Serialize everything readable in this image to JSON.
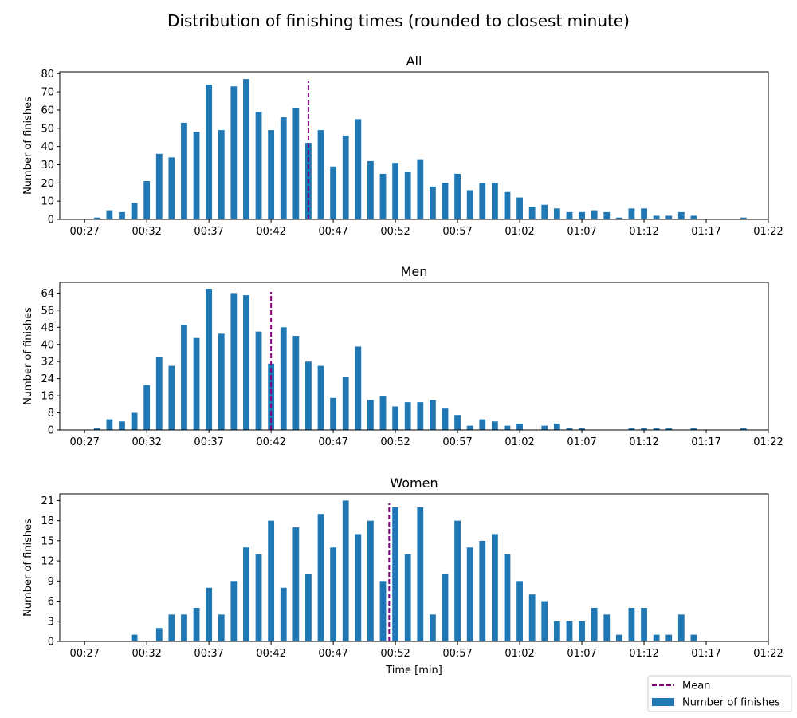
{
  "figure": {
    "title": "Distribution of finishing times (rounded to closest minute)"
  },
  "legend": {
    "placement": "lower-right",
    "items": [
      {
        "label": "Mean",
        "kind": "dashed-line",
        "color": "#800080"
      },
      {
        "label": "Number of finishes",
        "kind": "patch",
        "color": "#1f77b4"
      }
    ]
  },
  "colors": {
    "bar": "#1f77b4",
    "mean": "#800080"
  },
  "chart_data": [
    {
      "type": "bar",
      "title": "All",
      "xlabel": "",
      "ylabel": "Number of finishes",
      "x_unit": "minutes",
      "xlim": [
        25,
        82
      ],
      "ylim": [
        0,
        81
      ],
      "yticks": [
        0,
        10,
        20,
        30,
        40,
        50,
        60,
        70,
        80
      ],
      "xticks": [
        27,
        32,
        37,
        42,
        47,
        52,
        57,
        62,
        67,
        72,
        77,
        82
      ],
      "xtick_labels": [
        "00:27",
        "00:32",
        "00:37",
        "00:42",
        "00:47",
        "00:52",
        "00:57",
        "01:02",
        "01:07",
        "01:12",
        "01:17",
        "01:22"
      ],
      "mean": 45,
      "x": [
        28,
        29,
        30,
        31,
        32,
        33,
        34,
        35,
        36,
        37,
        38,
        39,
        40,
        41,
        42,
        43,
        44,
        45,
        46,
        47,
        48,
        49,
        50,
        51,
        52,
        53,
        54,
        55,
        56,
        57,
        58,
        59,
        60,
        61,
        62,
        63,
        64,
        65,
        66,
        67,
        68,
        69,
        70,
        71,
        72,
        73,
        74,
        75,
        76,
        80
      ],
      "values": [
        1,
        5,
        4,
        9,
        21,
        36,
        34,
        53,
        48,
        74,
        49,
        73,
        77,
        59,
        49,
        56,
        61,
        42,
        49,
        29,
        46,
        55,
        32,
        25,
        31,
        26,
        33,
        18,
        20,
        25,
        16,
        20,
        20,
        15,
        12,
        7,
        8,
        6,
        4,
        4,
        5,
        4,
        1,
        6,
        6,
        2,
        2,
        4,
        2,
        1
      ]
    },
    {
      "type": "bar",
      "title": "Men",
      "xlabel": "",
      "ylabel": "Number of finishes",
      "x_unit": "minutes",
      "xlim": [
        25,
        82
      ],
      "ylim": [
        0,
        69
      ],
      "yticks": [
        0,
        8,
        16,
        24,
        32,
        40,
        48,
        56,
        64
      ],
      "xticks": [
        27,
        32,
        37,
        42,
        47,
        52,
        57,
        62,
        67,
        72,
        77,
        82
      ],
      "xtick_labels": [
        "00:27",
        "00:32",
        "00:37",
        "00:42",
        "00:47",
        "00:52",
        "00:57",
        "01:02",
        "01:07",
        "01:12",
        "01:17",
        "01:22"
      ],
      "mean": 42,
      "x": [
        28,
        29,
        30,
        31,
        32,
        33,
        34,
        35,
        36,
        37,
        38,
        39,
        40,
        41,
        42,
        43,
        44,
        45,
        46,
        47,
        48,
        49,
        50,
        51,
        52,
        53,
        54,
        55,
        56,
        57,
        58,
        59,
        60,
        61,
        62,
        64,
        65,
        66,
        67,
        71,
        72,
        73,
        74,
        76,
        80
      ],
      "values": [
        1,
        5,
        4,
        8,
        21,
        34,
        30,
        49,
        43,
        66,
        45,
        64,
        63,
        46,
        31,
        48,
        44,
        32,
        30,
        15,
        25,
        39,
        14,
        16,
        11,
        13,
        13,
        14,
        10,
        7,
        2,
        5,
        4,
        2,
        3,
        2,
        3,
        1,
        1,
        1,
        1,
        1,
        1,
        1,
        1
      ]
    },
    {
      "type": "bar",
      "title": "Women",
      "xlabel": "Time [min]",
      "ylabel": "Number of finishes",
      "x_unit": "minutes",
      "xlim": [
        25,
        82
      ],
      "ylim": [
        0,
        22
      ],
      "yticks": [
        0,
        3,
        6,
        9,
        12,
        15,
        18,
        21
      ],
      "xticks": [
        27,
        32,
        37,
        42,
        47,
        52,
        57,
        62,
        67,
        72,
        77,
        82
      ],
      "xtick_labels": [
        "00:27",
        "00:32",
        "00:37",
        "00:42",
        "00:47",
        "00:52",
        "00:57",
        "01:02",
        "01:07",
        "01:12",
        "01:17",
        "01:22"
      ],
      "mean": 51.5,
      "x": [
        31,
        33,
        34,
        35,
        36,
        37,
        38,
        39,
        40,
        41,
        42,
        43,
        44,
        45,
        46,
        47,
        48,
        49,
        50,
        51,
        52,
        53,
        54,
        55,
        56,
        57,
        58,
        59,
        60,
        61,
        62,
        63,
        64,
        65,
        66,
        67,
        68,
        69,
        70,
        71,
        72,
        73,
        74,
        75,
        76
      ],
      "values": [
        1,
        2,
        4,
        4,
        5,
        8,
        4,
        9,
        14,
        13,
        18,
        8,
        17,
        10,
        19,
        14,
        21,
        16,
        18,
        9,
        20,
        13,
        20,
        4,
        10,
        18,
        14,
        15,
        16,
        13,
        9,
        7,
        6,
        3,
        3,
        3,
        5,
        4,
        1,
        5,
        5,
        1,
        1,
        4,
        1
      ]
    }
  ]
}
